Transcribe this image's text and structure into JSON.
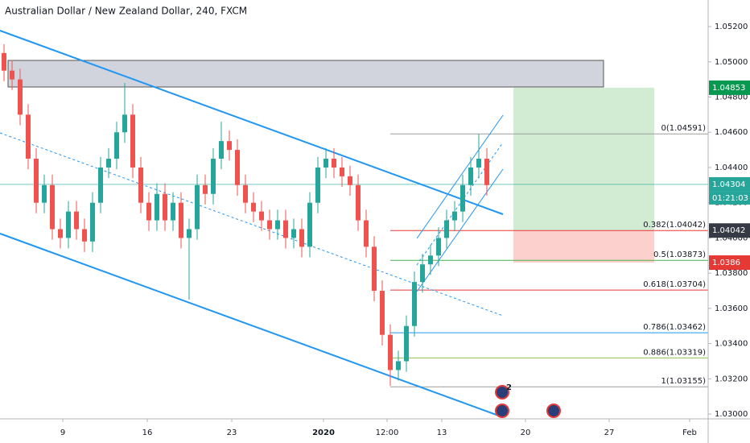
{
  "chart_data": {
    "type": "candlestick",
    "title": "Australian Dollar / New Zealand Dollar, 240, FXCM",
    "up_color": "#26a69a",
    "down_color": "#ef5350",
    "open": [
      1.0505,
      1.0495,
      1.049,
      1.047,
      1.0445,
      1.042,
      1.043,
      1.0405,
      1.04,
      1.0415,
      1.0405,
      1.0398,
      1.042,
      1.044,
      1.0445,
      1.046,
      1.047,
      1.044,
      1.042,
      1.041,
      1.0425,
      1.041,
      1.042,
      1.04,
      1.0405,
      1.043,
      1.0425,
      1.0445,
      1.0455,
      1.045,
      1.043,
      1.042,
      1.0415,
      1.041,
      1.0405,
      1.041,
      1.04,
      1.0405,
      1.0395,
      1.042,
      1.044,
      1.0445,
      1.044,
      1.0435,
      1.043,
      1.041,
      1.0395,
      1.037,
      1.0345,
      1.0325,
      1.033,
      1.035,
      1.0375,
      1.0385,
      1.039,
      1.04,
      1.041,
      1.0415,
      1.043,
      1.044,
      1.0445
    ],
    "high": [
      1.051,
      1.0501,
      1.0496,
      1.0476,
      1.0451,
      1.0436,
      1.0436,
      1.0411,
      1.0421,
      1.0421,
      1.0411,
      1.0426,
      1.0446,
      1.0451,
      1.0466,
      1.0488,
      1.0476,
      1.0446,
      1.0426,
      1.0431,
      1.0431,
      1.0426,
      1.0426,
      1.0411,
      1.0436,
      1.0436,
      1.0451,
      1.0466,
      1.0461,
      1.0456,
      1.0436,
      1.0426,
      1.0421,
      1.0416,
      1.0416,
      1.0416,
      1.0411,
      1.0411,
      1.0426,
      1.0446,
      1.0451,
      1.0451,
      1.0446,
      1.0441,
      1.0436,
      1.0416,
      1.0401,
      1.0376,
      1.0351,
      1.0336,
      1.0356,
      1.0381,
      1.0391,
      1.0396,
      1.0406,
      1.0416,
      1.0421,
      1.0436,
      1.0446,
      1.0459,
      1.0451
    ],
    "low": [
      1.0489,
      1.0484,
      1.0464,
      1.0439,
      1.0414,
      1.0414,
      1.0399,
      1.0394,
      1.0394,
      1.0399,
      1.0392,
      1.0392,
      1.0414,
      1.0434,
      1.0439,
      1.0454,
      1.0434,
      1.0414,
      1.0404,
      1.0404,
      1.0404,
      1.0404,
      1.0394,
      1.0365,
      1.0399,
      1.0419,
      1.0419,
      1.0439,
      1.0444,
      1.0424,
      1.0414,
      1.0409,
      1.0404,
      1.0399,
      1.0399,
      1.0394,
      1.0394,
      1.0389,
      1.0389,
      1.0414,
      1.0434,
      1.0434,
      1.0429,
      1.0424,
      1.0404,
      1.0389,
      1.0364,
      1.0339,
      1.0316,
      1.0319,
      1.0324,
      1.0344,
      1.0369,
      1.0379,
      1.0384,
      1.0394,
      1.0404,
      1.0409,
      1.0424,
      1.0434,
      1.0424
    ],
    "close": [
      1.0495,
      1.049,
      1.047,
      1.0445,
      1.042,
      1.043,
      1.0405,
      1.04,
      1.0415,
      1.0405,
      1.0398,
      1.042,
      1.044,
      1.0445,
      1.046,
      1.047,
      1.044,
      1.042,
      1.041,
      1.0425,
      1.041,
      1.042,
      1.04,
      1.0405,
      1.043,
      1.0425,
      1.0445,
      1.0455,
      1.045,
      1.043,
      1.042,
      1.0415,
      1.041,
      1.0405,
      1.041,
      1.04,
      1.0405,
      1.0395,
      1.042,
      1.044,
      1.0445,
      1.044,
      1.0435,
      1.043,
      1.041,
      1.0395,
      1.037,
      1.0345,
      1.0325,
      1.033,
      1.035,
      1.0375,
      1.0385,
      1.039,
      1.04,
      1.041,
      1.0415,
      1.043,
      1.044,
      1.0445,
      1.043
    ],
    "xlim": [
      0,
      88
    ],
    "xticks": [
      {
        "value": 7.8,
        "label": "9"
      },
      {
        "value": 18.3,
        "label": "16"
      },
      {
        "value": 28.8,
        "label": "23"
      },
      {
        "value": 40.2,
        "label": "2020"
      },
      {
        "value": 48.1,
        "label": "12:00"
      },
      {
        "value": 54.9,
        "label": "13"
      },
      {
        "value": 65.3,
        "label": "20"
      },
      {
        "value": 75.7,
        "label": "27"
      },
      {
        "value": 85.7,
        "label": "Feb"
      }
    ],
    "ylim": [
      1.02973,
      1.05351
    ],
    "yticks": [
      {
        "value": 1.052,
        "label": "1.05200"
      },
      {
        "value": 1.05,
        "label": "1.05000"
      },
      {
        "value": 1.048,
        "label": "1.04800"
      },
      {
        "value": 1.046,
        "label": "1.04600"
      },
      {
        "value": 1.044,
        "label": "1.04400"
      },
      {
        "value": 1.042,
        "label": "1.04200"
      },
      {
        "value": 1.04,
        "label": "1.04000"
      },
      {
        "value": 1.038,
        "label": "1.03800"
      },
      {
        "value": 1.036,
        "label": "1.03600"
      },
      {
        "value": 1.034,
        "label": "1.03400"
      },
      {
        "value": 1.032,
        "label": "1.03200"
      },
      {
        "value": 1.03,
        "label": "1.03000"
      }
    ],
    "fib_levels": [
      {
        "value": 1.04591,
        "label": "0(1.04591)",
        "color": "#9e9e9e"
      },
      {
        "value": 1.04042,
        "label": "0.382(1.04042)",
        "color": "#e53935"
      },
      {
        "value": 1.03873,
        "label": "0.5(1.03873)",
        "color": "#4caf50"
      },
      {
        "value": 1.03704,
        "label": "0.618(1.03704)",
        "color": "#e53935"
      },
      {
        "value": 1.03462,
        "label": "0.786(1.03462)",
        "color": "#2196f3"
      },
      {
        "value": 1.03319,
        "label": "0.886(1.03319)",
        "color": "#8bc34a"
      },
      {
        "value": 1.03155,
        "label": "1(1.03155)",
        "color": "#9e9e9e"
      }
    ],
    "position": {
      "target": 1.04853,
      "entry": 1.04042,
      "stop": 1.0386
    },
    "price_labels": [
      {
        "value": 1.04853,
        "color": "#089950"
      },
      {
        "value": 1.04304,
        "color": "#26a69a"
      },
      {
        "value": 1.04042,
        "color": "#363a45"
      },
      {
        "value": 1.0386,
        "color": "#e53935"
      }
    ],
    "current_price": 1.04304,
    "countdown": "01:21:03",
    "event_badge": "2"
  }
}
